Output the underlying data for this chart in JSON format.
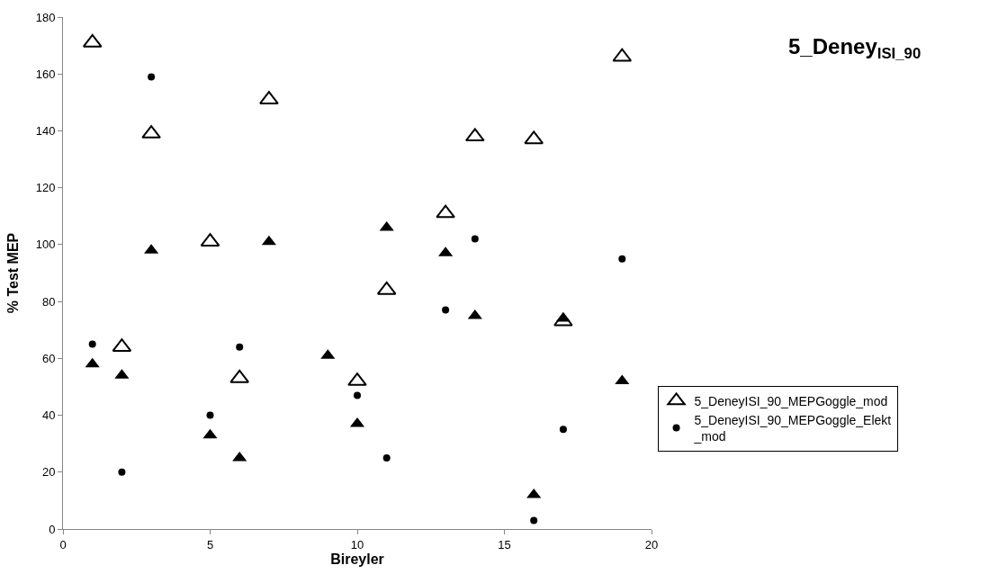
{
  "chart_data": {
    "type": "scatter",
    "title": "5_Deney$_{ISI_90}$",
    "xlabel": "Bireyler",
    "ylabel": "% Test MEP",
    "xlim": [
      0,
      20
    ],
    "xticks": [
      0,
      5,
      10,
      15,
      20
    ],
    "ylim": [
      0,
      180
    ],
    "yticks": [
      0,
      20,
      40,
      60,
      80,
      100,
      120,
      140,
      160,
      180
    ],
    "legend": "right",
    "series": [
      {
        "name": "5_DeneyISI_90_MEPGoggle_mod",
        "color": "#000000",
        "marker": "triangle-open",
        "x": [
          1,
          2,
          3,
          5,
          6,
          7,
          10,
          11,
          13,
          14,
          16,
          17,
          19
        ],
        "values": [
          171,
          64,
          139,
          101,
          53,
          151,
          52,
          84,
          111,
          138,
          137,
          73,
          166
        ]
      },
      {
        "color": "#000000",
        "marker": "triangle",
        "x": [
          1,
          2,
          3,
          5,
          6,
          7,
          9,
          10,
          11,
          13,
          14,
          16,
          17,
          19
        ],
        "values": [
          58,
          54,
          98,
          33,
          25,
          101,
          61,
          37,
          106,
          97,
          75,
          12,
          74,
          52
        ]
      },
      {
        "name": "5_DeneyISI_90_MEPGoggle_Elekt_mod",
        "color": "#000000",
        "marker": "circle",
        "x": [
          1,
          2,
          3,
          5,
          6,
          10,
          11,
          13,
          14,
          16,
          17,
          19
        ],
        "values": [
          65,
          20,
          159,
          40,
          64,
          47,
          25,
          77,
          102,
          3,
          35,
          95
        ]
      }
    ]
  }
}
